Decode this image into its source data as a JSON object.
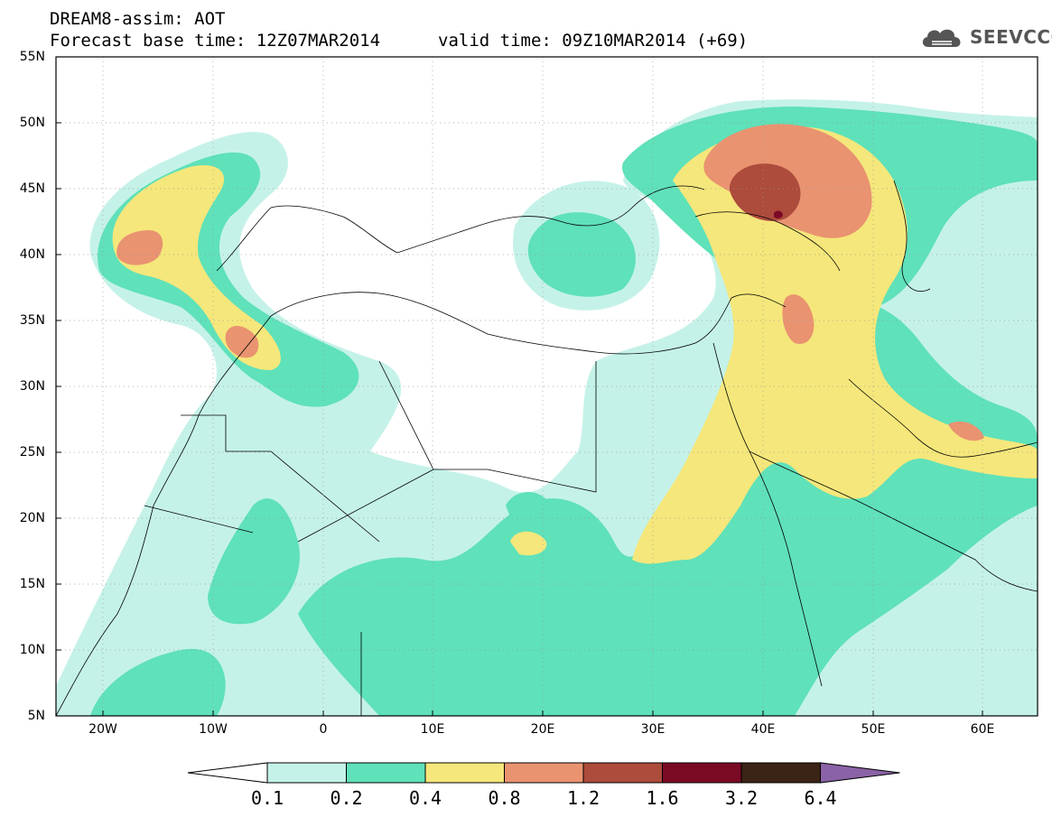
{
  "header": {
    "model_line": "DREAM8-assim: AOT",
    "base_time": "Forecast base time: 12Z07MAR2014",
    "valid_time": "valid time: 09Z10MAR2014 (+69)",
    "logo_text": "SEEVCCC",
    "logo_icon": "cloud-icon"
  },
  "axes": {
    "lat_labels": [
      "55N",
      "50N",
      "45N",
      "40N",
      "35N",
      "30N",
      "25N",
      "20N",
      "15N",
      "10N",
      "5N"
    ],
    "lon_labels": [
      "20W",
      "10W",
      "0",
      "10E",
      "20E",
      "30E",
      "40E",
      "50E",
      "60E"
    ]
  },
  "colorbar": {
    "levels": [
      "0.1",
      "0.2",
      "0.4",
      "0.8",
      "1.2",
      "1.6",
      "3.2",
      "6.4"
    ],
    "colors": [
      "#ffffff",
      "#c5f2e8",
      "#5fe1ba",
      "#f5e77b",
      "#e99371",
      "#ad4b3c",
      "#7b0a25",
      "#3a2416",
      "#8a62a6"
    ]
  },
  "map": {
    "region": "North Africa, Mediterranean, Middle East",
    "variable": "AOT"
  }
}
